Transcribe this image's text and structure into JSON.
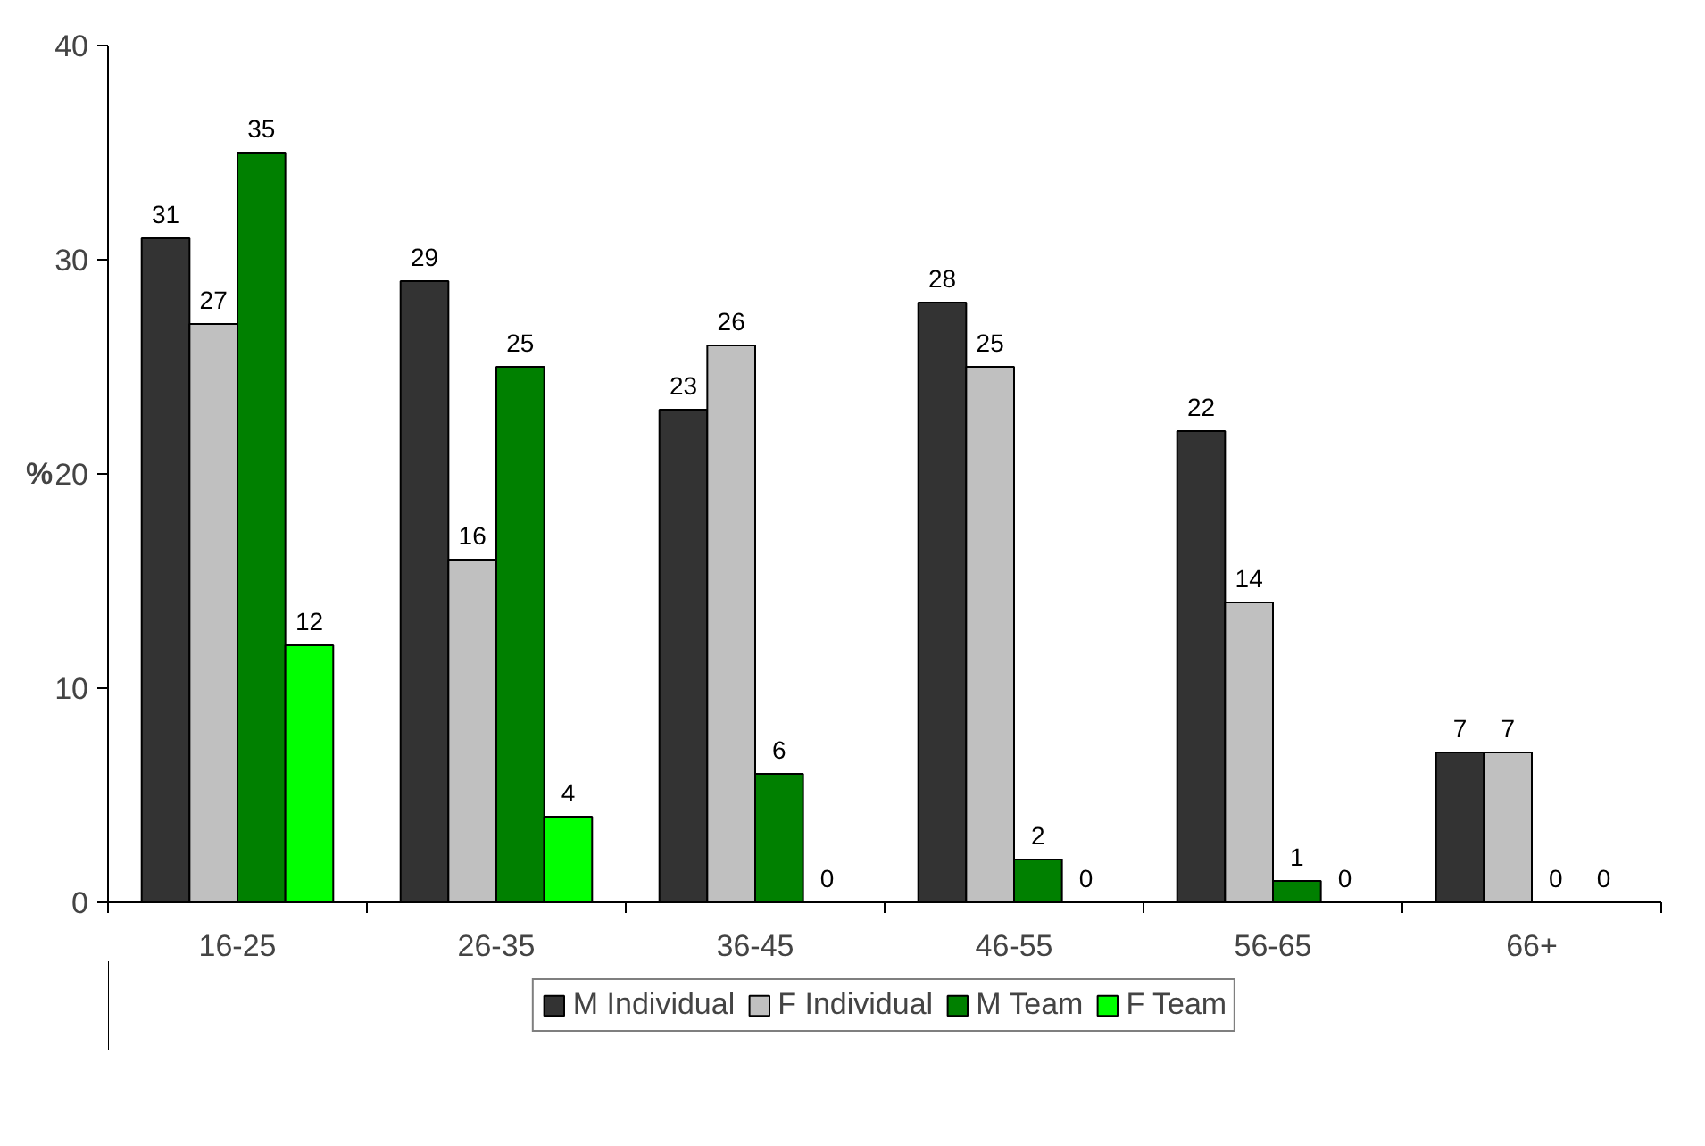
{
  "chart_data": {
    "type": "bar",
    "ylabel": "%",
    "categories": [
      "16-25",
      "26-35",
      "36-45",
      "46-55",
      "56-65",
      "66+"
    ],
    "series": [
      {
        "name": "M Individual",
        "color": "#333333",
        "values": [
          31,
          29,
          23,
          28,
          22,
          7
        ]
      },
      {
        "name": "F Individual",
        "color": "#c0c0c0",
        "values": [
          27,
          16,
          26,
          25,
          14,
          7
        ]
      },
      {
        "name": "M Team",
        "color": "#008000",
        "values": [
          35,
          25,
          6,
          2,
          1,
          0
        ]
      },
      {
        "name": "F Team",
        "color": "#00ff00",
        "values": [
          12,
          4,
          0,
          0,
          0,
          0
        ]
      }
    ],
    "ylim": [
      0,
      40
    ],
    "yticks": [
      0,
      10,
      20,
      30,
      40
    ],
    "data_labels": true,
    "grid": false,
    "legend": "bottom"
  }
}
